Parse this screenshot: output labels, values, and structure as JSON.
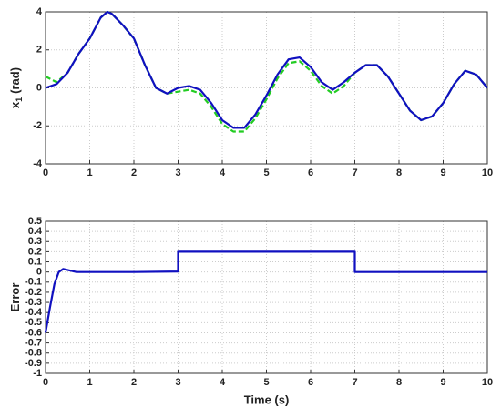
{
  "chart_data": [
    {
      "type": "line",
      "ylabel": "x",
      "ylabel_sub": "1",
      "ylabel_unit": "(rad)",
      "x": [
        0,
        0.25,
        0.5,
        0.75,
        1,
        1.25,
        1.4,
        1.5,
        1.75,
        2,
        2.25,
        2.5,
        2.75,
        3,
        3.25,
        3.5,
        3.75,
        4,
        4.25,
        4.5,
        4.75,
        5,
        5.25,
        5.5,
        5.75,
        6,
        6.25,
        6.5,
        6.75,
        7,
        7.25,
        7.5,
        7.75,
        8,
        8.25,
        8.5,
        8.75,
        9,
        9.25,
        9.5,
        9.75,
        10
      ],
      "series": [
        {
          "color": "#22cc22",
          "style": "dashed",
          "values": [
            0.6,
            0.3,
            0.8,
            1.8,
            2.6,
            3.7,
            4.0,
            3.9,
            3.3,
            2.6,
            1.2,
            0.0,
            -0.3,
            -0.2,
            -0.1,
            -0.3,
            -1.0,
            -1.9,
            -2.3,
            -2.3,
            -1.6,
            -0.6,
            0.5,
            1.3,
            1.4,
            0.9,
            0.1,
            -0.3,
            0.1,
            0.8,
            1.2,
            1.2,
            0.6,
            -0.3,
            -1.2,
            -1.7,
            -1.5,
            -0.8,
            0.2,
            0.9,
            0.7,
            0.0
          ]
        },
        {
          "color": "#1010c0",
          "style": "solid",
          "values": [
            0.0,
            0.2,
            0.8,
            1.8,
            2.6,
            3.7,
            4.0,
            3.9,
            3.3,
            2.6,
            1.2,
            0.0,
            -0.3,
            0.0,
            0.1,
            -0.1,
            -0.8,
            -1.7,
            -2.1,
            -2.1,
            -1.4,
            -0.4,
            0.7,
            1.5,
            1.6,
            1.1,
            0.3,
            -0.1,
            0.3,
            0.8,
            1.2,
            1.2,
            0.6,
            -0.3,
            -1.2,
            -1.7,
            -1.5,
            -0.8,
            0.2,
            0.9,
            0.7,
            0.0
          ]
        }
      ],
      "xlim": [
        0,
        10
      ],
      "ylim": [
        -4,
        4
      ],
      "xticks": [
        0,
        1,
        2,
        3,
        4,
        5,
        6,
        7,
        8,
        9,
        10
      ],
      "yticks": [
        -4,
        -2,
        0,
        2,
        4
      ],
      "grid": true
    },
    {
      "type": "line",
      "ylabel": "Error",
      "xlabel": "Time (s)",
      "x": [
        0,
        0.1,
        0.2,
        0.3,
        0.4,
        0.5,
        0.7,
        1,
        2,
        3,
        3,
        7,
        7,
        8,
        9,
        10
      ],
      "series": [
        {
          "color": "#1010c0",
          "style": "solid",
          "values": [
            -0.6,
            -0.35,
            -0.12,
            0.0,
            0.03,
            0.02,
            0.0,
            0.0,
            0.0,
            0.005,
            0.2,
            0.2,
            0.0,
            0.0,
            0.0,
            0.0
          ]
        }
      ],
      "xlim": [
        0,
        10
      ],
      "ylim": [
        -1,
        0.5
      ],
      "xticks": [
        0,
        1,
        2,
        3,
        4,
        5,
        6,
        7,
        8,
        9,
        10
      ],
      "yticks": [
        -1,
        -0.9,
        -0.8,
        -0.7,
        -0.6,
        -0.5,
        -0.4,
        -0.3,
        -0.2,
        -0.1,
        0,
        0.1,
        0.2,
        0.3,
        0.4,
        0.5
      ],
      "grid": true
    }
  ]
}
